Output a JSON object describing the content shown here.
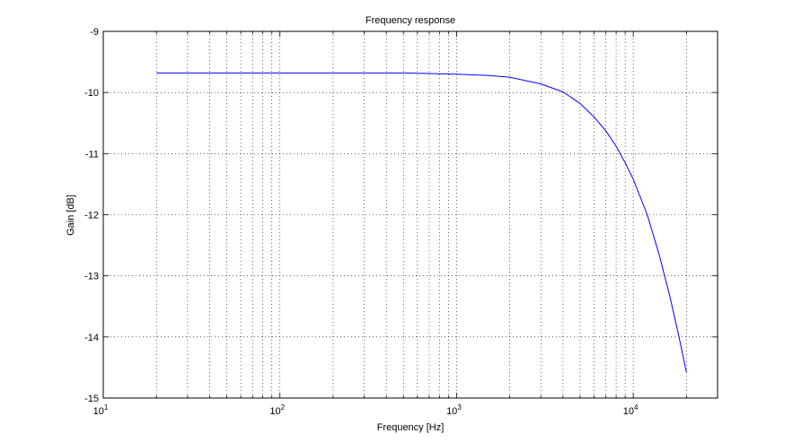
{
  "chart_data": {
    "type": "line",
    "title": "Frequency response",
    "xlabel": "Frequency [Hz]",
    "ylabel": "Gain [dB]",
    "xscale": "log",
    "xlim": [
      10,
      30000
    ],
    "ylim": [
      -15,
      -9
    ],
    "grid": true,
    "x_ticks": [
      {
        "base": "10",
        "exp": "1",
        "value": 10
      },
      {
        "base": "10",
        "exp": "2",
        "value": 100
      },
      {
        "base": "10",
        "exp": "3",
        "value": 1000
      },
      {
        "base": "10",
        "exp": "4",
        "value": 10000
      }
    ],
    "y_ticks": [
      "-9",
      "-10",
      "-11",
      "-12",
      "-13",
      "-14",
      "-15"
    ],
    "series": [
      {
        "color": "#0000ff",
        "x": [
          20,
          50,
          100,
          200,
          500,
          700,
          1000,
          1500,
          2000,
          3000,
          4000,
          5000,
          6000,
          7000,
          8000,
          9000,
          10000,
          12000,
          14000,
          16000,
          18000,
          20000
        ],
        "y": [
          -9.68,
          -9.68,
          -9.68,
          -9.68,
          -9.68,
          -9.69,
          -9.7,
          -9.72,
          -9.75,
          -9.86,
          -9.99,
          -10.18,
          -10.4,
          -10.63,
          -10.88,
          -11.15,
          -11.42,
          -12.0,
          -12.65,
          -13.3,
          -13.95,
          -14.58
        ]
      }
    ]
  }
}
